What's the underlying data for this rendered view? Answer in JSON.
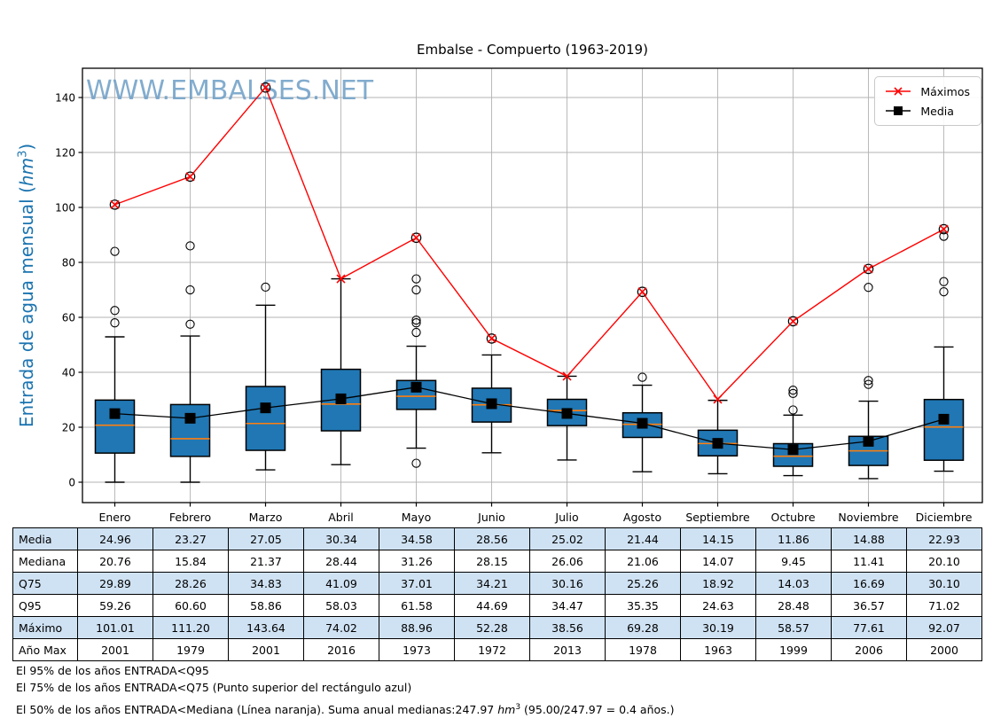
{
  "title": "Embalse - Compuerto (1963-2019)",
  "watermark": "WWW.EMBALSES.NET",
  "ylabel": {
    "pre": "Entrada de agua mensual (",
    "unit": "hm",
    "exp": "3",
    "post": ")"
  },
  "legend": {
    "maximos": "Máximos",
    "media": "Media"
  },
  "colors": {
    "box_fill": "#2077B4",
    "box_edge": "#000000",
    "median": "#FF7F0E",
    "maximos": "#FF0000",
    "media": "#000000",
    "grid": "#B3B3B3",
    "watermark": "#6D9EC6",
    "ylabel": "#1B74B0",
    "table_shade": "#CFE2F3"
  },
  "chart_data": {
    "type": "boxplot",
    "title": "Embalse - Compuerto (1963-2019)",
    "xlabel": "",
    "ylabel": "Entrada de agua mensual (hm3)",
    "grid": true,
    "legend_position": "upper right",
    "ylim": [
      -7,
      151
    ],
    "yticks": [
      0,
      20,
      40,
      60,
      80,
      100,
      120,
      140
    ],
    "categories": [
      "Enero",
      "Febrero",
      "Marzo",
      "Abril",
      "Mayo",
      "Junio",
      "Julio",
      "Agosto",
      "Septiembre",
      "Octubre",
      "Noviembre",
      "Diciembre"
    ],
    "series": {
      "media": [
        24.96,
        23.27,
        27.05,
        30.34,
        34.58,
        28.56,
        25.02,
        21.44,
        14.15,
        11.86,
        14.88,
        22.93
      ],
      "mediana": [
        20.76,
        15.84,
        21.37,
        28.44,
        31.26,
        28.15,
        26.06,
        21.06,
        14.07,
        9.45,
        11.41,
        20.1
      ],
      "q75": [
        29.89,
        28.26,
        34.83,
        41.09,
        37.01,
        34.21,
        30.16,
        25.26,
        18.92,
        14.03,
        16.69,
        30.1
      ],
      "q95": [
        59.26,
        60.6,
        58.86,
        58.03,
        61.58,
        44.69,
        34.47,
        35.35,
        24.63,
        28.48,
        36.57,
        71.02
      ],
      "maximo": [
        101.01,
        111.2,
        143.64,
        74.02,
        88.96,
        52.28,
        38.56,
        69.28,
        30.19,
        58.57,
        77.61,
        92.07
      ],
      "ano_max": [
        2001,
        1979,
        2001,
        2016,
        1973,
        1972,
        2013,
        1978,
        1963,
        1999,
        2006,
        2000
      ],
      "q25_est": [
        10.6,
        9.4,
        11.6,
        18.7,
        26.5,
        21.9,
        20.6,
        16.3,
        9.6,
        5.8,
        6.1,
        8.0
      ],
      "whisker_low_est": [
        0,
        0,
        4.5,
        6.4,
        12.4,
        10.7,
        8.1,
        3.8,
        3.1,
        2.4,
        1.3,
        4.0
      ],
      "whisker_high_est": [
        52.9,
        53.2,
        64.4,
        74.02,
        49.5,
        46.3,
        38.56,
        35.3,
        29.8,
        24.4,
        29.5,
        49.2
      ],
      "outliers_est": [
        [
          84,
          62.5,
          58
        ],
        [
          86,
          70,
          57.5
        ],
        [
          71
        ],
        [],
        [
          74,
          70,
          59,
          58,
          54.5,
          6.9
        ],
        [],
        [],
        [
          38.2
        ],
        [],
        [
          33.5,
          32.3,
          26.3
        ],
        [
          70.9,
          37,
          35.6
        ],
        [
          89.5,
          73,
          69.3
        ]
      ],
      "max_circled": [
        true,
        true,
        true,
        false,
        true,
        true,
        false,
        true,
        false,
        true,
        true,
        true
      ]
    }
  },
  "table": {
    "rows": [
      {
        "key": "media",
        "label": "Media",
        "shaded": true,
        "values": [
          "24.96",
          "23.27",
          "27.05",
          "30.34",
          "34.58",
          "28.56",
          "25.02",
          "21.44",
          "14.15",
          "11.86",
          "14.88",
          "22.93"
        ]
      },
      {
        "key": "mediana",
        "label": "Mediana",
        "shaded": false,
        "values": [
          "20.76",
          "15.84",
          "21.37",
          "28.44",
          "31.26",
          "28.15",
          "26.06",
          "21.06",
          "14.07",
          "9.45",
          "11.41",
          "20.10"
        ]
      },
      {
        "key": "q75",
        "label": "Q75",
        "shaded": true,
        "values": [
          "29.89",
          "28.26",
          "34.83",
          "41.09",
          "37.01",
          "34.21",
          "30.16",
          "25.26",
          "18.92",
          "14.03",
          "16.69",
          "30.10"
        ]
      },
      {
        "key": "q95",
        "label": "Q95",
        "shaded": false,
        "values": [
          "59.26",
          "60.60",
          "58.86",
          "58.03",
          "61.58",
          "44.69",
          "34.47",
          "35.35",
          "24.63",
          "28.48",
          "36.57",
          "71.02"
        ]
      },
      {
        "key": "maximo",
        "label": "Máximo",
        "shaded": true,
        "values": [
          "101.01",
          "111.20",
          "143.64",
          "74.02",
          "88.96",
          "52.28",
          "38.56",
          "69.28",
          "30.19",
          "58.57",
          "77.61",
          "92.07"
        ]
      },
      {
        "key": "ano-max",
        "label": "Año Max",
        "shaded": false,
        "values": [
          "2001",
          "1979",
          "2001",
          "2016",
          "1973",
          "1972",
          "2013",
          "1978",
          "1963",
          "1999",
          "2006",
          "2000"
        ]
      }
    ]
  },
  "footnotes": {
    "line1": "El 95% de los años ENTRADA<Q95",
    "line2": "El 75% de los años ENTRADA<Q75 (Punto superior del rectángulo azul)",
    "line3_pre": "El 50% de los años ENTRADA<Mediana (Línea naranja). Suma anual medianas:247.97 ",
    "line3_unit": "hm",
    "line3_exp": "3",
    "line3_post": " (95.00/247.97 = 0.4 años.)"
  }
}
